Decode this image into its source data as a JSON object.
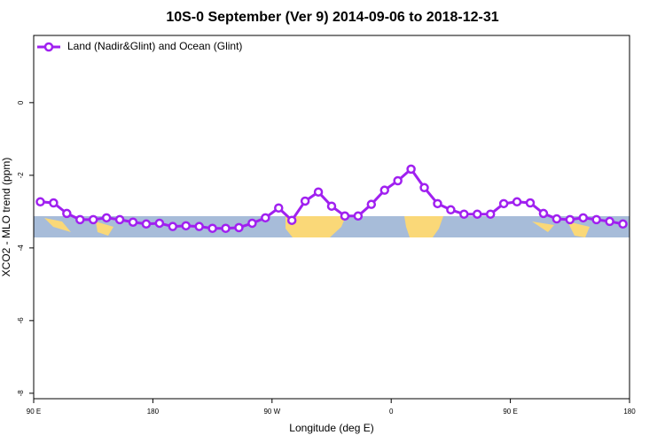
{
  "chart_data": {
    "type": "line",
    "title": "10S-0 September (Ver 9)   2014-09-06 to 2018-12-31",
    "x_label": "Longitude (deg E)",
    "y_label": "XCO2 - MLO trend (ppm)",
    "x": [
      95,
      105,
      115,
      125,
      135,
      145,
      155,
      165,
      175,
      185,
      195,
      205,
      215,
      225,
      235,
      245,
      255,
      265,
      275,
      285,
      295,
      305,
      315,
      325,
      335,
      345,
      355,
      365,
      375,
      385,
      395,
      405,
      415,
      425,
      435,
      445,
      455,
      465,
      475,
      485,
      495,
      505,
      515,
      525,
      535
    ],
    "series": [
      {
        "name": "Land (Nadir&Glint) and Ocean (Glint)",
        "color": "#a020f0",
        "values": [
          -2.73,
          -2.76,
          -3.05,
          -3.22,
          -3.22,
          -3.17,
          -3.22,
          -3.29,
          -3.34,
          -3.32,
          -3.41,
          -3.39,
          -3.41,
          -3.46,
          -3.46,
          -3.44,
          -3.32,
          -3.17,
          -2.9,
          -3.24,
          -2.71,
          -2.46,
          -2.85,
          -3.12,
          -3.12,
          -2.8,
          -2.41,
          -2.15,
          -1.83,
          -2.34,
          -2.78,
          -2.95,
          -3.07,
          -3.07,
          -3.07,
          -2.78,
          -2.73,
          -2.76,
          -3.05,
          -3.2,
          -3.22,
          -3.17,
          -3.22,
          -3.27,
          -3.34
        ]
      }
    ],
    "xlim": [
      90,
      540
    ],
    "xticks": [
      {
        "value": 90,
        "label": "90 E"
      },
      {
        "value": 180,
        "label": "180"
      },
      {
        "value": 270,
        "label": "90 W"
      },
      {
        "value": 360,
        "label": "0"
      },
      {
        "value": 450,
        "label": "90 E"
      },
      {
        "value": 540,
        "label": "180"
      }
    ],
    "ylim": [
      -8.15,
      1.85
    ],
    "yticks": [
      0,
      -2,
      -4,
      -6,
      -8
    ],
    "legend": "top-left"
  }
}
